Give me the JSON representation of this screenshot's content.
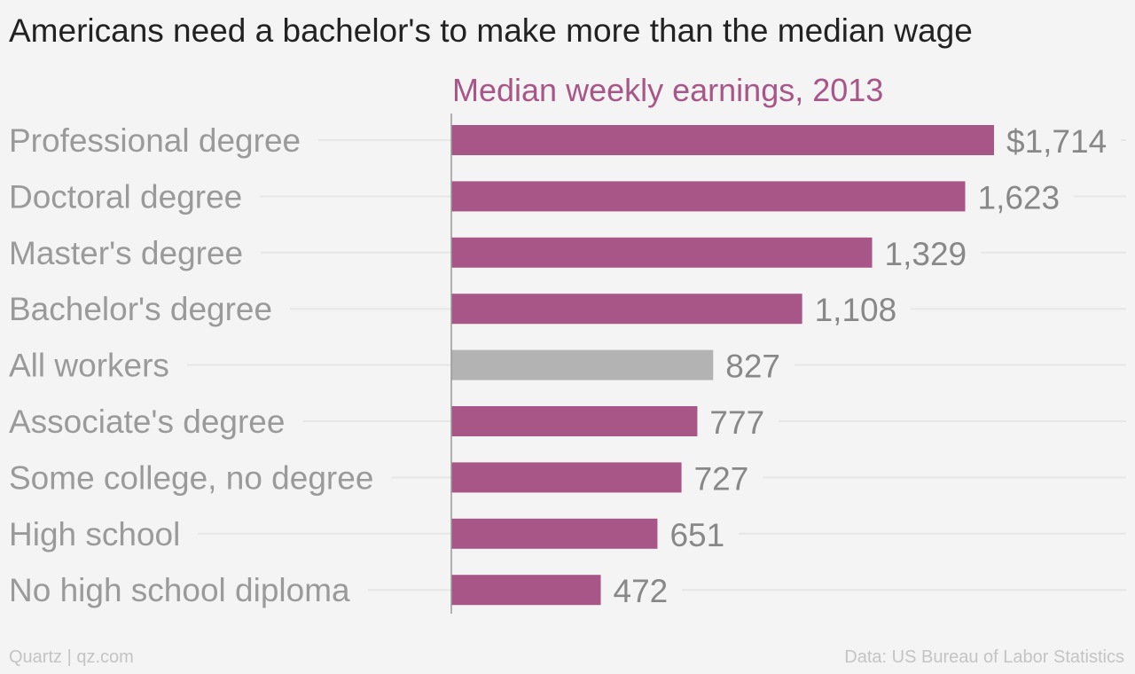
{
  "title": "Americans need a bachelor's to make more than the median wage",
  "footer": {
    "credit": "Quartz | qz.com",
    "source": "Data: US Bureau of Labor Statistics"
  },
  "colors": {
    "bar": "#a85687",
    "highlight": "#b3b3b3",
    "subtitle": "#a85687",
    "label": "#9a9a9a",
    "value": "#888888",
    "gridline": "#e6e6e6",
    "axis": "#999999"
  },
  "chart_data": {
    "type": "bar",
    "orientation": "horizontal",
    "subtitle": "Median weekly earnings, 2013",
    "categories": [
      "Professional degree",
      "Doctoral degree",
      "Master's degree",
      "Bachelor's degree",
      "All workers",
      "Associate's degree",
      "Some college, no degree",
      "High school",
      "No high school diploma"
    ],
    "values": [
      1714,
      1623,
      1329,
      1108,
      827,
      777,
      727,
      651,
      472
    ],
    "value_labels": [
      "$1,714",
      "1,623",
      "1,329",
      "1,108",
      "827",
      "777",
      "727",
      "651",
      "472"
    ],
    "highlight_category": "All workers",
    "xlim": [
      0,
      1714
    ],
    "grid": true,
    "legend": "none"
  }
}
